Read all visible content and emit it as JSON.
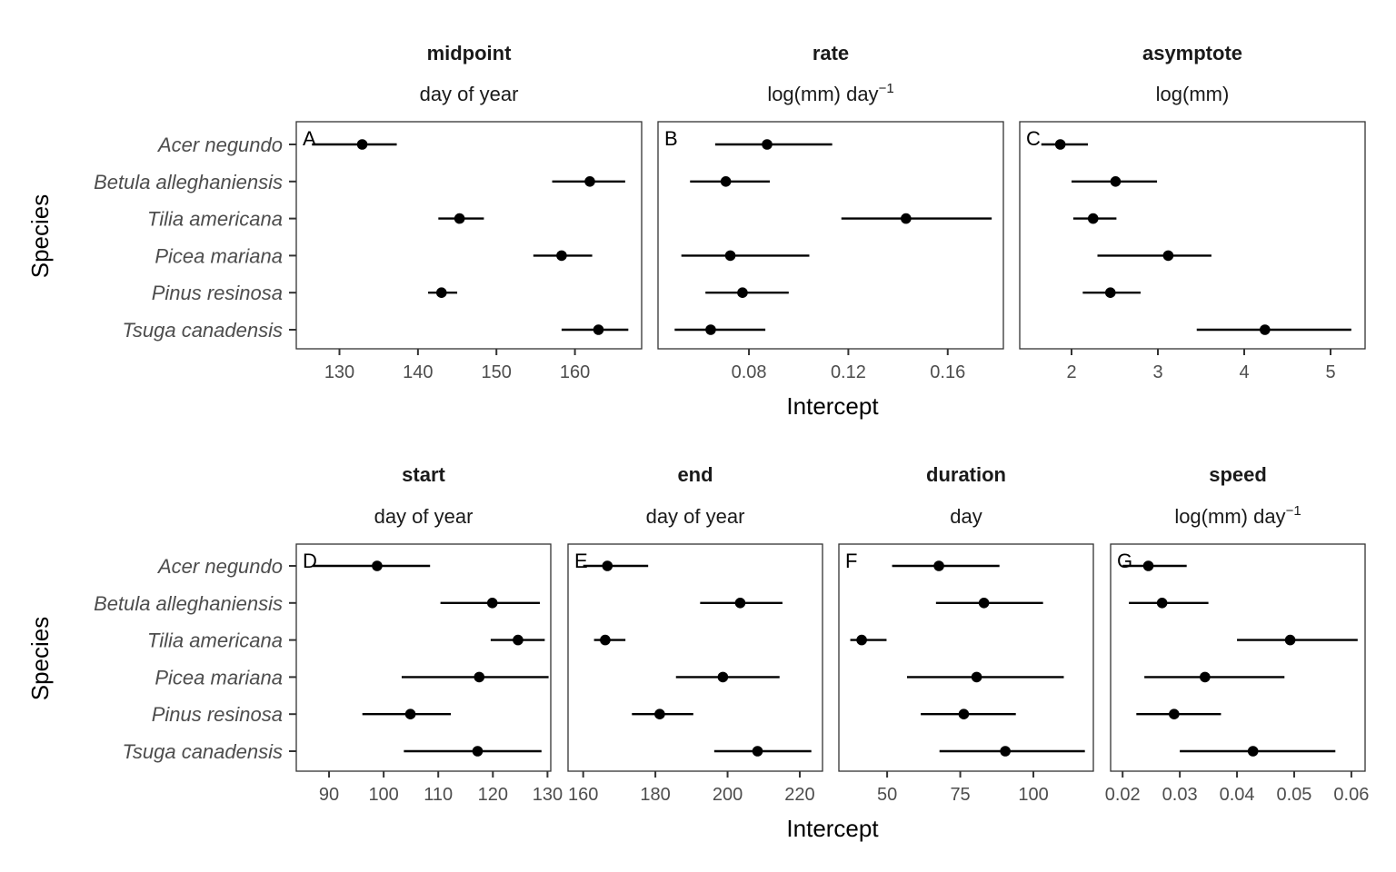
{
  "figure": {
    "xlabel": "Intercept",
    "ylabel": "Species",
    "species": [
      "Acer negundo",
      "Betula alleghaniensis",
      "Tilia americana",
      "Picea mariana",
      "Pinus resinosa",
      "Tsuga canadensis"
    ]
  },
  "chart_data": [
    {
      "type": "scatter",
      "panel": "A",
      "title": "midpoint",
      "subtitle": "day of year",
      "xlim": [
        124.5,
        168.5
      ],
      "xticks": [
        130,
        140,
        150,
        160
      ],
      "xtick_labels": [
        "130",
        "140",
        "150",
        "160"
      ],
      "points": [
        {
          "species": "Acer negundo",
          "estimate": 132.9,
          "lower": 126.5,
          "upper": 137.3
        },
        {
          "species": "Betula alleghaniensis",
          "estimate": 161.9,
          "lower": 157.1,
          "upper": 166.4
        },
        {
          "species": "Tilia americana",
          "estimate": 145.3,
          "lower": 142.6,
          "upper": 148.4
        },
        {
          "species": "Picea mariana",
          "estimate": 158.3,
          "lower": 154.7,
          "upper": 162.2
        },
        {
          "species": "Pinus resinosa",
          "estimate": 143.0,
          "lower": 141.3,
          "upper": 145.0
        },
        {
          "species": "Tsuga canadensis",
          "estimate": 163.0,
          "lower": 158.3,
          "upper": 166.8
        }
      ]
    },
    {
      "type": "scatter",
      "panel": "B",
      "title": "rate",
      "subtitle": "log(mm) day",
      "subtitle_sup": "−1",
      "xlim": [
        0.0434,
        0.1824
      ],
      "xticks": [
        0.08,
        0.12,
        0.16
      ],
      "xtick_labels": [
        "0.08",
        "0.12",
        "0.16"
      ],
      "points": [
        {
          "species": "Acer negundo",
          "estimate": 0.0873,
          "lower": 0.0664,
          "upper": 0.1135
        },
        {
          "species": "Betula alleghaniensis",
          "estimate": 0.0707,
          "lower": 0.0563,
          "upper": 0.0884
        },
        {
          "species": "Tilia americana",
          "estimate": 0.1432,
          "lower": 0.1172,
          "upper": 0.1777
        },
        {
          "species": "Picea mariana",
          "estimate": 0.0725,
          "lower": 0.0528,
          "upper": 0.1043
        },
        {
          "species": "Pinus resinosa",
          "estimate": 0.0774,
          "lower": 0.0625,
          "upper": 0.096
        },
        {
          "species": "Tsuga canadensis",
          "estimate": 0.0646,
          "lower": 0.0501,
          "upper": 0.0866
        }
      ]
    },
    {
      "type": "scatter",
      "panel": "C",
      "title": "asymptote",
      "subtitle": "log(mm)",
      "xlim": [
        1.4,
        5.4
      ],
      "xticks": [
        2,
        3,
        4,
        5
      ],
      "xtick_labels": [
        "2",
        "3",
        "4",
        "5"
      ],
      "points": [
        {
          "species": "Acer negundo",
          "estimate": 1.87,
          "lower": 1.65,
          "upper": 2.19
        },
        {
          "species": "Betula alleghaniensis",
          "estimate": 2.51,
          "lower": 2.0,
          "upper": 2.99
        },
        {
          "species": "Tilia americana",
          "estimate": 2.25,
          "lower": 2.02,
          "upper": 2.52
        },
        {
          "species": "Picea mariana",
          "estimate": 3.12,
          "lower": 2.3,
          "upper": 3.62
        },
        {
          "species": "Pinus resinosa",
          "estimate": 2.45,
          "lower": 2.13,
          "upper": 2.8
        },
        {
          "species": "Tsuga canadensis",
          "estimate": 4.24,
          "lower": 3.45,
          "upper": 5.24
        }
      ]
    },
    {
      "type": "scatter",
      "panel": "D",
      "title": "start",
      "subtitle": "day of year",
      "xlim": [
        84.0,
        130.6
      ],
      "xticks": [
        90,
        100,
        110,
        120,
        130
      ],
      "xtick_labels": [
        "90",
        "100",
        "110",
        "120",
        "130"
      ],
      "points": [
        {
          "species": "Acer negundo",
          "estimate": 98.8,
          "lower": 87.0,
          "upper": 108.5
        },
        {
          "species": "Betula alleghaniensis",
          "estimate": 119.9,
          "lower": 110.4,
          "upper": 128.6
        },
        {
          "species": "Tilia americana",
          "estimate": 124.6,
          "lower": 119.6,
          "upper": 129.5
        },
        {
          "species": "Picea mariana",
          "estimate": 117.5,
          "lower": 103.3,
          "upper": 130.2
        },
        {
          "species": "Pinus resinosa",
          "estimate": 104.9,
          "lower": 96.1,
          "upper": 112.3
        },
        {
          "species": "Tsuga canadensis",
          "estimate": 117.2,
          "lower": 103.7,
          "upper": 128.9
        }
      ]
    },
    {
      "type": "scatter",
      "panel": "E",
      "title": "end",
      "subtitle": "day of year",
      "xlim": [
        155.8,
        226.3
      ],
      "xticks": [
        160,
        180,
        200,
        220
      ],
      "xtick_labels": [
        "160",
        "180",
        "200",
        "220"
      ],
      "points": [
        {
          "species": "Acer negundo",
          "estimate": 166.7,
          "lower": 160.0,
          "upper": 178.0
        },
        {
          "species": "Betula alleghaniensis",
          "estimate": 203.5,
          "lower": 192.4,
          "upper": 215.2
        },
        {
          "species": "Tilia americana",
          "estimate": 166.1,
          "lower": 163.0,
          "upper": 171.7
        },
        {
          "species": "Picea mariana",
          "estimate": 198.7,
          "lower": 185.7,
          "upper": 214.4
        },
        {
          "species": "Pinus resinosa",
          "estimate": 181.2,
          "lower": 173.5,
          "upper": 190.5
        },
        {
          "species": "Tsuga canadensis",
          "estimate": 208.3,
          "lower": 196.3,
          "upper": 223.2
        }
      ]
    },
    {
      "type": "scatter",
      "panel": "F",
      "title": "duration",
      "subtitle": "day",
      "xlim": [
        33.5,
        120.5
      ],
      "xticks": [
        50,
        75,
        100
      ],
      "xtick_labels": [
        "50",
        "75",
        "100"
      ],
      "points": [
        {
          "species": "Acer negundo",
          "estimate": 67.7,
          "lower": 51.7,
          "upper": 88.4
        },
        {
          "species": "Betula alleghaniensis",
          "estimate": 83.1,
          "lower": 66.7,
          "upper": 103.3
        },
        {
          "species": "Tilia americana",
          "estimate": 41.3,
          "lower": 37.4,
          "upper": 49.8
        },
        {
          "species": "Picea mariana",
          "estimate": 80.6,
          "lower": 56.8,
          "upper": 110.4
        },
        {
          "species": "Pinus resinosa",
          "estimate": 76.2,
          "lower": 61.5,
          "upper": 94.0
        },
        {
          "species": "Tsuga canadensis",
          "estimate": 90.4,
          "lower": 67.9,
          "upper": 117.6
        }
      ]
    },
    {
      "type": "scatter",
      "panel": "G",
      "title": "speed",
      "subtitle": "log(mm) day",
      "subtitle_sup": "−1",
      "xlim": [
        0.0179,
        0.0624
      ],
      "xticks": [
        0.02,
        0.03,
        0.04,
        0.05,
        0.06
      ],
      "xtick_labels": [
        "0.02",
        "0.03",
        "0.04",
        "0.05",
        "0.06"
      ],
      "points": [
        {
          "species": "Acer negundo",
          "estimate": 0.0245,
          "lower": 0.02,
          "upper": 0.0312
        },
        {
          "species": "Betula alleghaniensis",
          "estimate": 0.0269,
          "lower": 0.0211,
          "upper": 0.035
        },
        {
          "species": "Tilia americana",
          "estimate": 0.0493,
          "lower": 0.04,
          "upper": 0.0611
        },
        {
          "species": "Picea mariana",
          "estimate": 0.0344,
          "lower": 0.0238,
          "upper": 0.0483
        },
        {
          "species": "Pinus resinosa",
          "estimate": 0.029,
          "lower": 0.0224,
          "upper": 0.0372
        },
        {
          "species": "Tsuga canadensis",
          "estimate": 0.0428,
          "lower": 0.03,
          "upper": 0.0572
        }
      ]
    }
  ]
}
